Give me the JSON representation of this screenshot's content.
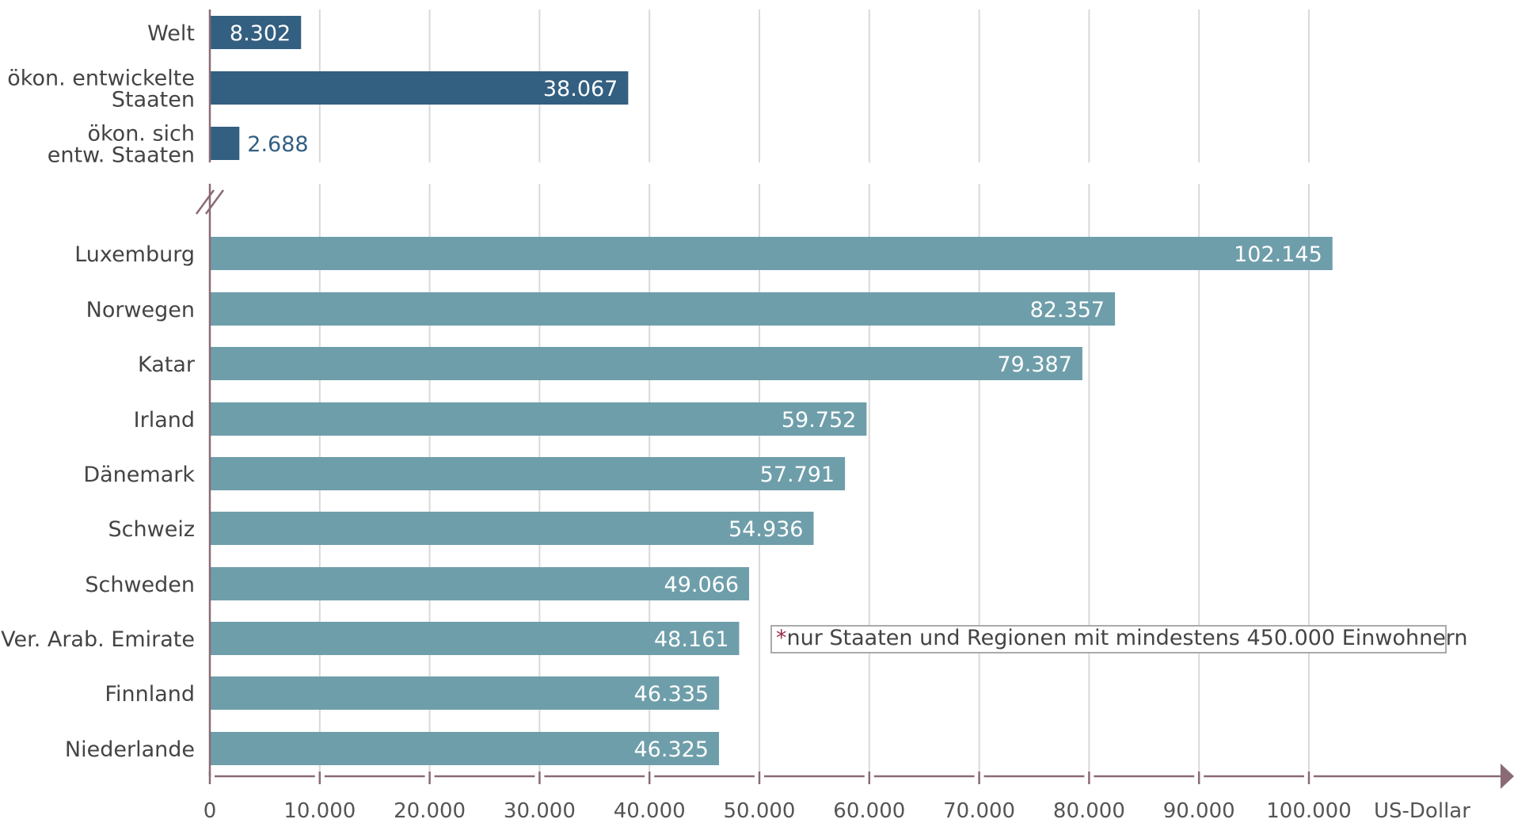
{
  "chart_data": {
    "type": "bar",
    "orientation": "horizontal",
    "unit_label": "US-Dollar",
    "footnote": {
      "marker": "*",
      "text": "nur Staaten und Regionen mit mindestens 450.000 Einwohnern"
    },
    "xlim": [
      0,
      120000
    ],
    "x_ticks": [
      {
        "value": 0,
        "label": "0"
      },
      {
        "value": 10000,
        "label": "10.000"
      },
      {
        "value": 20000,
        "label": "20.000"
      },
      {
        "value": 30000,
        "label": "30.000"
      },
      {
        "value": 40000,
        "label": "40.000"
      },
      {
        "value": 50000,
        "label": "50.000"
      },
      {
        "value": 60000,
        "label": "60.000"
      },
      {
        "value": 70000,
        "label": "70.000"
      },
      {
        "value": 80000,
        "label": "80.000"
      },
      {
        "value": 90000,
        "label": "90.000"
      },
      {
        "value": 100000,
        "label": "100.000"
      }
    ],
    "grid": true,
    "axis_break": true,
    "groups": [
      {
        "color": "#335f81",
        "bars": [
          {
            "label": [
              "Welt"
            ],
            "value": 8302,
            "value_label": "8.302"
          },
          {
            "label": [
              "ökon. entwickelte",
              "Staaten"
            ],
            "value": 38067,
            "value_label": "38.067"
          },
          {
            "label": [
              "ökon. sich",
              "entw. Staaten"
            ],
            "value": 2688,
            "value_label": "2.688"
          }
        ]
      },
      {
        "color": "#6e9eaa",
        "bars": [
          {
            "label": [
              "Luxemburg"
            ],
            "value": 102145,
            "value_label": "102.145"
          },
          {
            "label": [
              "Norwegen"
            ],
            "value": 82357,
            "value_label": "82.357"
          },
          {
            "label": [
              "Katar"
            ],
            "value": 79387,
            "value_label": "79.387"
          },
          {
            "label": [
              "Irland"
            ],
            "value": 59752,
            "value_label": "59.752"
          },
          {
            "label": [
              "Dänemark"
            ],
            "value": 57791,
            "value_label": "57.791"
          },
          {
            "label": [
              "Schweiz"
            ],
            "value": 54936,
            "value_label": "54.936"
          },
          {
            "label": [
              "Schweden"
            ],
            "value": 49066,
            "value_label": "49.066"
          },
          {
            "label": [
              "Ver. Arab. Emirate"
            ],
            "value": 48161,
            "value_label": "48.161"
          },
          {
            "label": [
              "Finnland"
            ],
            "value": 46335,
            "value_label": "46.335"
          },
          {
            "label": [
              "Niederlande"
            ],
            "value": 46325,
            "value_label": "46.325"
          }
        ]
      }
    ],
    "colors": {
      "axis": "#8a6a74",
      "grid": "#d9d9d9",
      "category_text": "#444444",
      "tick_text": "#555555",
      "value_text_inside": "#ffffff",
      "value_text_outside": "#335f81",
      "footnote_marker": "#9b2b4a",
      "footnote_border": "#aaaaaa"
    }
  }
}
